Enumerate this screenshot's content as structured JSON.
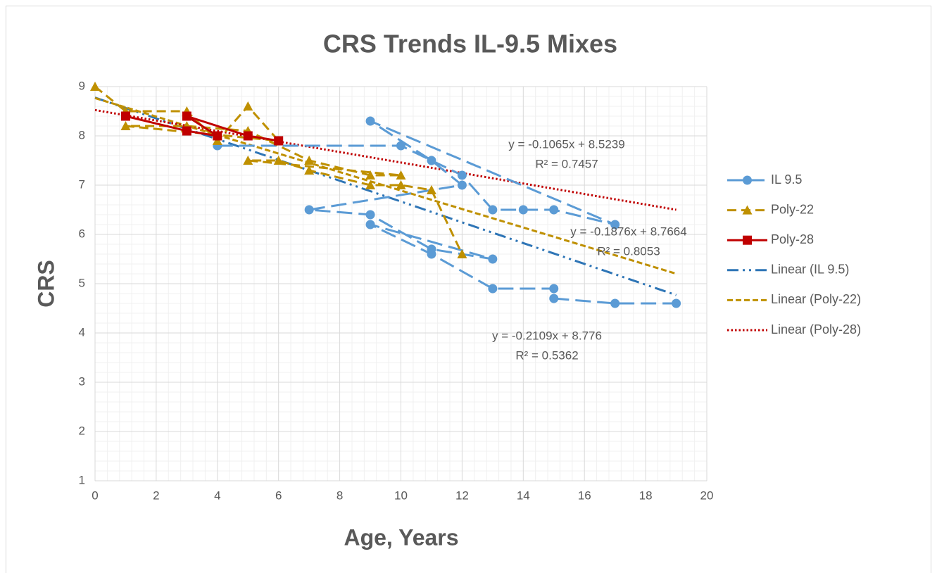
{
  "chart_data": {
    "type": "scatter",
    "title": "CRS Trends IL-9.5 Mixes",
    "x_label": "Age, Years",
    "y_label": "CRS",
    "xlim": [
      0,
      20
    ],
    "xticks": [
      0,
      2,
      4,
      6,
      8,
      10,
      12,
      14,
      16,
      18,
      20
    ],
    "ylim": [
      1,
      9
    ],
    "yticks": [
      1,
      2,
      3,
      4,
      5,
      6,
      7,
      8,
      9
    ],
    "grid": true,
    "minor_grid": true,
    "legend": "right",
    "series": [
      {
        "name": "IL 9.5",
        "color": "#5b9bd5",
        "marker": "circle",
        "dash": "long-dash",
        "x": [
          4,
          10,
          12,
          13,
          14,
          15,
          17,
          9,
          11,
          12,
          7,
          9,
          11,
          13,
          9,
          11,
          13,
          15,
          15,
          17,
          19
        ],
        "values": [
          7.8,
          7.8,
          7.2,
          6.5,
          6.5,
          6.5,
          6.2,
          8.3,
          7.5,
          7.0,
          6.5,
          6.4,
          5.7,
          5.5,
          6.2,
          5.6,
          4.9,
          4.9,
          4.7,
          4.6,
          4.6
        ]
      },
      {
        "name": "Poly-22",
        "color": "#bf9000",
        "marker": "triangle",
        "dash": "dash",
        "x": [
          0,
          1,
          3,
          4,
          5,
          6,
          1,
          3,
          5,
          7,
          9,
          10,
          5,
          6,
          7,
          9,
          10,
          11,
          12
        ],
        "values": [
          9.0,
          8.5,
          8.5,
          7.9,
          8.6,
          7.9,
          8.2,
          8.2,
          8.1,
          7.5,
          7.2,
          7.2,
          7.5,
          7.5,
          7.3,
          7.0,
          7.0,
          6.9,
          5.6
        ]
      },
      {
        "name": "Poly-28",
        "color": "#c00000",
        "marker": "square",
        "dash": "solid",
        "x": [
          1,
          3,
          4,
          3,
          5,
          6
        ],
        "values": [
          8.4,
          8.1,
          8.0,
          8.4,
          8.0,
          7.9
        ]
      }
    ],
    "trendlines": [
      {
        "name": "Linear (IL 9.5)",
        "color": "#2e75b6",
        "dash": "dash-dot-dot",
        "slope": -0.2109,
        "intercept": 8.776,
        "x": [
          0,
          19
        ],
        "equation": "y = -0.2109x + 8.776",
        "r2": "R² = 0.5362"
      },
      {
        "name": "Linear (Poly-22)",
        "color": "#bf9000",
        "dash": "short-dash",
        "slope": -0.1876,
        "intercept": 8.7664,
        "x": [
          0,
          19
        ],
        "equation": "y = -0.1876x + 8.7664",
        "r2": "R² = 0.8053"
      },
      {
        "name": "Linear (Poly-28)",
        "color": "#c00000",
        "dash": "dot",
        "slope": -0.1065,
        "intercept": 8.5239,
        "x": [
          0,
          19
        ],
        "equation": "y = -0.1065x + 8.5239",
        "r2": "R² = 0.7457"
      }
    ]
  }
}
